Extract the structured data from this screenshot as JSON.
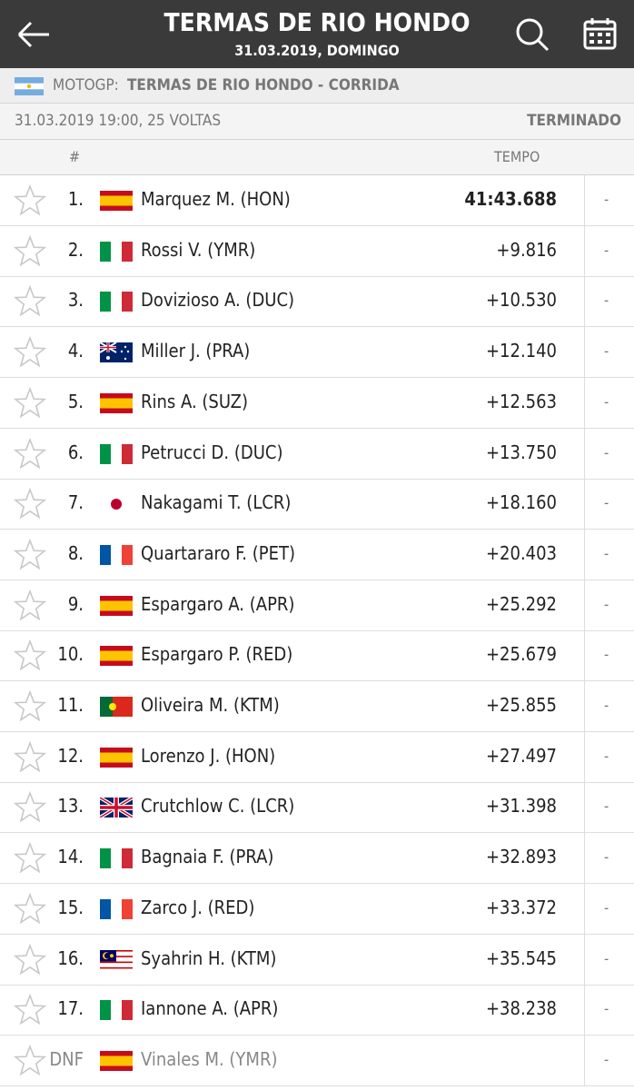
{
  "header": {
    "title": "TERMAS DE RIO HONDO",
    "subtitle": "31.03.2019, DOMINGO"
  },
  "race": {
    "series": "MOTOGP:",
    "event": "TERMAS DE RIO HONDO - CORRIDA",
    "info": "31.03.2019 19:00, 25 VOLTAS",
    "status": "TERMINADO"
  },
  "table": {
    "columns": [
      "#",
      "TEMPO"
    ],
    "rows": [
      [
        "1.",
        "Marquez M. (HON)",
        "41:43.688",
        "-"
      ],
      [
        "2.",
        "Rossi V. (YMR)",
        "+9.816",
        "-"
      ],
      [
        "3.",
        "Dovizioso A. (DUC)",
        "+10.530",
        "-"
      ],
      [
        "4.",
        "Miller J. (PRA)",
        "+12.140",
        "-"
      ],
      [
        "5.",
        "Rins A. (SUZ)",
        "+12.563",
        "-"
      ],
      [
        "6.",
        "Petrucci D. (DUC)",
        "+13.750",
        "-"
      ],
      [
        "7.",
        "Nakagami T. (LCR)",
        "+18.160",
        "-"
      ],
      [
        "8.",
        "Quartararo F. (PET)",
        "+20.403",
        "-"
      ],
      [
        "9.",
        "Espargaro A. (APR)",
        "+25.292",
        "-"
      ],
      [
        "10.",
        "Espargaro P. (RED)",
        "+25.679",
        "-"
      ],
      [
        "11.",
        "Oliveira M. (KTM)",
        "+25.855",
        "-"
      ],
      [
        "12.",
        "Lorenzo J. (HON)",
        "+27.497",
        "-"
      ],
      [
        "13.",
        "Crutchlow C. (LCR)",
        "+31.398",
        "-"
      ],
      [
        "14.",
        "Bagnaia F. (PRA)",
        "+32.893",
        "-"
      ],
      [
        "15.",
        "Zarco J. (RED)",
        "+33.372",
        "-"
      ],
      [
        "16.",
        "Syahrin H. (KTM)",
        "+35.545",
        "-"
      ],
      [
        "17.",
        "Iannone A. (APR)",
        "+38.238",
        "-"
      ],
      [
        "DNF",
        "Vinales M. (YMR)",
        null,
        "-"
      ]
    ]
  }
}
